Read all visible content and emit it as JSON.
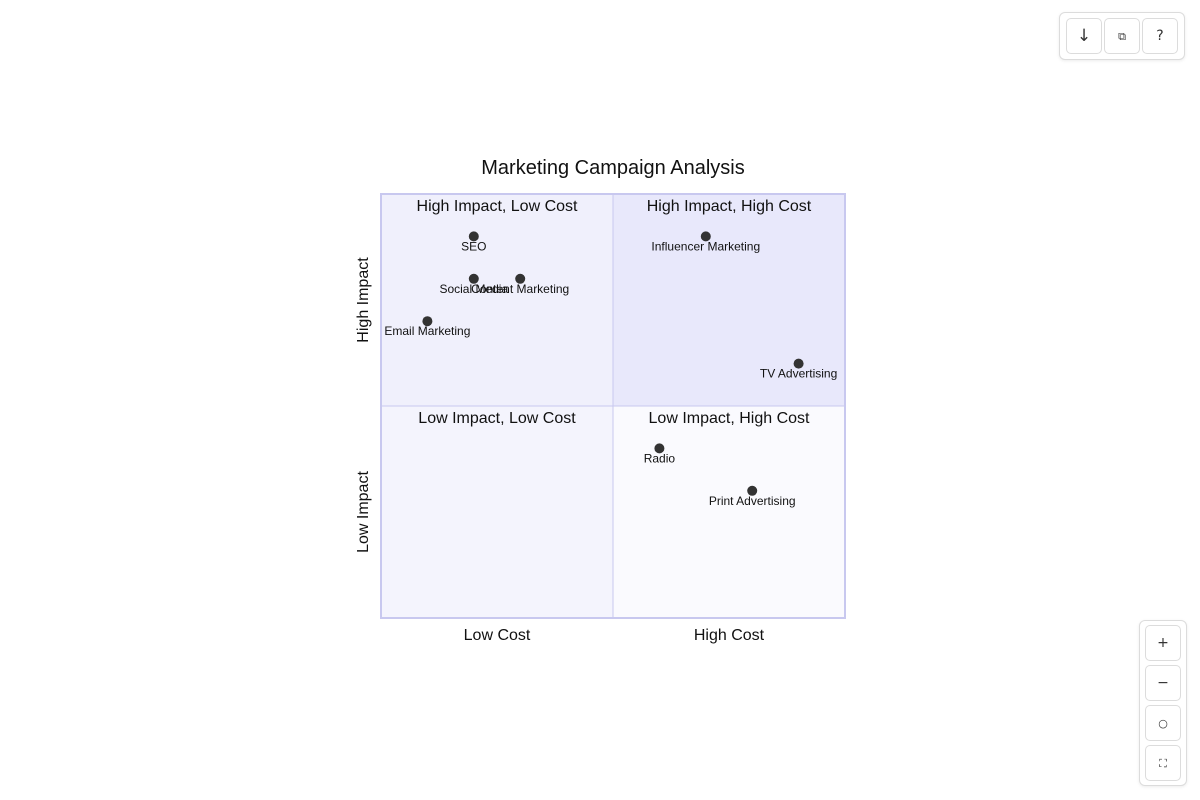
{
  "toolbar": {
    "download_icon": "↓",
    "copy_icon": "⧉",
    "help_icon": "?"
  },
  "zoom_controls": {
    "zoom_in_icon": "+",
    "zoom_out_icon": "−",
    "reset_icon": "○",
    "fullscreen_icon": "⛶"
  },
  "chart_data": {
    "type": "scatter",
    "title": "Marketing Campaign Analysis",
    "x_axis": {
      "low_label": "Low Cost",
      "high_label": "High Cost",
      "range": [
        0,
        1
      ]
    },
    "y_axis": {
      "low_label": "Low Impact",
      "high_label": "High Impact",
      "range": [
        0,
        1
      ]
    },
    "quadrants": {
      "top_left": {
        "label": "High Impact, Low Cost",
        "fill": "#f0f0fc"
      },
      "top_right": {
        "label": "High Impact, High Cost",
        "fill": "#e8e8fb"
      },
      "bottom_left": {
        "label": "Low Impact, Low Cost",
        "fill": "#f4f4fd"
      },
      "bottom_right": {
        "label": "Low Impact, High Cost",
        "fill": "#fafafe"
      }
    },
    "border_color": "#c8c8ef",
    "point_color": "#333333",
    "points": [
      {
        "label": "SEO",
        "x": 0.2,
        "y": 0.9
      },
      {
        "label": "Social Media",
        "x": 0.2,
        "y": 0.8
      },
      {
        "label": "Content Marketing",
        "x": 0.3,
        "y": 0.8
      },
      {
        "label": "Email Marketing",
        "x": 0.1,
        "y": 0.7
      },
      {
        "label": "Influencer Marketing",
        "x": 0.7,
        "y": 0.9
      },
      {
        "label": "TV Advertising",
        "x": 0.9,
        "y": 0.6
      },
      {
        "label": "Radio",
        "x": 0.6,
        "y": 0.4
      },
      {
        "label": "Print Advertising",
        "x": 0.8,
        "y": 0.3
      }
    ]
  }
}
